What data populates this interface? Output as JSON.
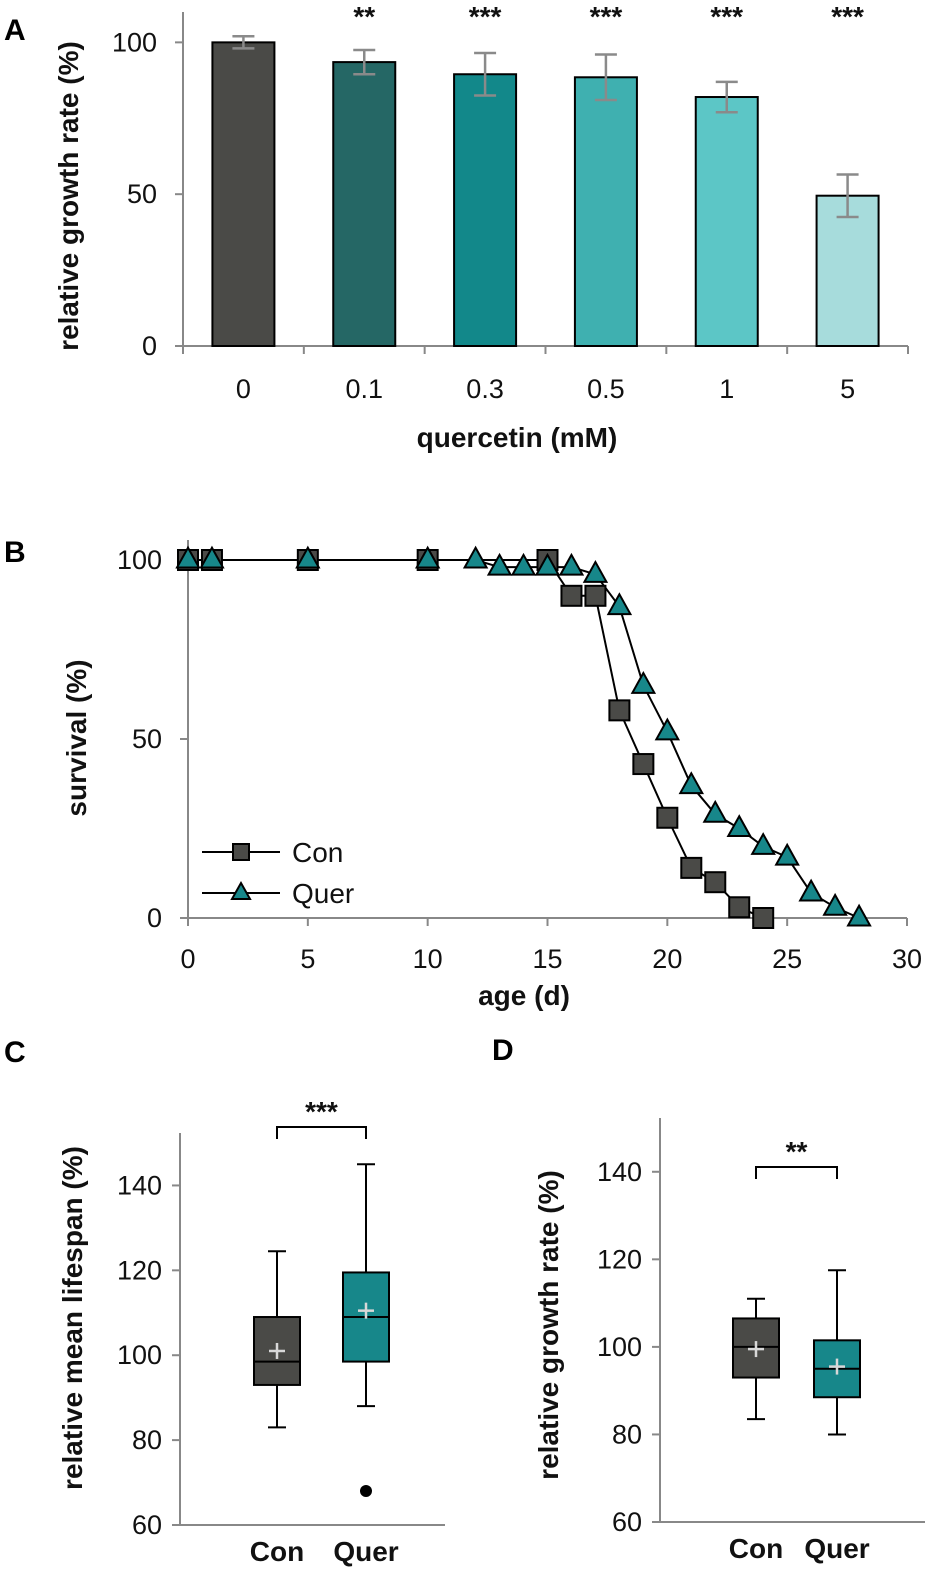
{
  "chart_data": [
    {
      "panel": "A",
      "type": "bar",
      "xlabel": "quercetin (mM)",
      "ylabel": "relative growth rate (%)",
      "ylim": [
        0,
        110
      ],
      "yticks": [
        "0",
        "50",
        "100"
      ],
      "categories": [
        "0",
        "0.1",
        "0.3",
        "0.5",
        "1",
        "5"
      ],
      "values": [
        100,
        93.5,
        89.5,
        88.5,
        82,
        49.5
      ],
      "errors": [
        2,
        4,
        7,
        7.5,
        5,
        7
      ],
      "significance": [
        "",
        "**",
        "***",
        "***",
        "***",
        "***"
      ],
      "colors": [
        "#4a4a47",
        "#256765",
        "#12888a",
        "#3fb0b0",
        "#5cc6c6",
        "#a7dcdc"
      ]
    },
    {
      "panel": "B",
      "type": "line",
      "xlabel": "age (d)",
      "ylabel": "survival (%)",
      "xlim": [
        0,
        30
      ],
      "ylim": [
        0,
        100
      ],
      "xticks": [
        "0",
        "5",
        "10",
        "15",
        "20",
        "25",
        "30"
      ],
      "yticks": [
        "0",
        "50",
        "100"
      ],
      "series": [
        {
          "name": "Con",
          "color": "#4a4a47",
          "marker": "square",
          "x": [
            0,
            1,
            5,
            10,
            15,
            16,
            17,
            18,
            19,
            20,
            21,
            22,
            23,
            24
          ],
          "y": [
            100,
            100,
            100,
            100,
            100,
            90,
            90,
            58,
            43,
            28,
            14,
            10,
            3,
            0
          ]
        },
        {
          "name": "Quer",
          "color": "#17878a",
          "marker": "triangle",
          "x": [
            0,
            1,
            5,
            10,
            12,
            13,
            14,
            15,
            16,
            17,
            18,
            19,
            20,
            21,
            22,
            23,
            24,
            25,
            26,
            27,
            28
          ],
          "y": [
            100,
            100,
            100,
            100,
            100,
            98,
            98,
            98,
            98,
            96,
            87,
            65,
            52,
            37,
            29,
            25,
            20,
            17,
            7,
            3,
            0
          ]
        }
      ]
    },
    {
      "panel": "C",
      "type": "box",
      "ylabel": "relative mean lifespan (%)",
      "ylim": [
        60,
        150
      ],
      "yticks": [
        "60",
        "80",
        "100",
        "120",
        "140"
      ],
      "categories": [
        "Con",
        "Quer"
      ],
      "boxes": [
        {
          "whisker_low": 83,
          "q1": 93,
          "median": 98.5,
          "q3": 109,
          "whisker_high": 124.5,
          "mean": 101,
          "outliers": [],
          "color": "#4a4a47"
        },
        {
          "whisker_low": 88,
          "q1": 98.5,
          "median": 109,
          "q3": 119.5,
          "whisker_high": 145,
          "mean": 110.5,
          "outliers": [
            68
          ],
          "color": "#17878a"
        }
      ],
      "significance": "***"
    },
    {
      "panel": "D",
      "type": "box",
      "ylabel": "relative growth rate (%)",
      "ylim": [
        60,
        150
      ],
      "yticks": [
        "60",
        "80",
        "100",
        "120",
        "140"
      ],
      "categories": [
        "Con",
        "Quer"
      ],
      "boxes": [
        {
          "whisker_low": 83.5,
          "q1": 93,
          "median": 100,
          "q3": 106.5,
          "whisker_high": 111,
          "mean": 99.5,
          "outliers": [],
          "color": "#4a4a47"
        },
        {
          "whisker_low": 80,
          "q1": 88.5,
          "median": 95,
          "q3": 101.5,
          "whisker_high": 117.5,
          "mean": 95.5,
          "outliers": [],
          "color": "#17878a"
        }
      ],
      "significance": "**"
    }
  ]
}
